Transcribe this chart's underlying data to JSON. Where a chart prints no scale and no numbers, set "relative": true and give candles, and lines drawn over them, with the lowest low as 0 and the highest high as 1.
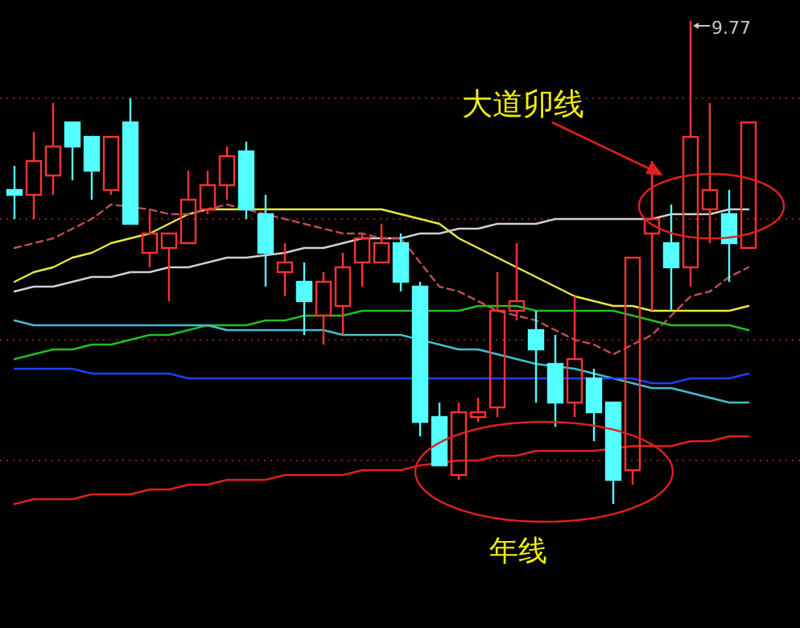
{
  "chart_data": {
    "type": "candlestick",
    "relative": true,
    "categories": [
      null,
      null,
      null,
      null,
      null,
      null,
      null,
      null,
      null,
      null,
      null,
      null,
      null,
      null,
      null,
      null,
      null,
      null,
      null,
      null,
      null,
      null,
      null,
      null,
      null,
      null,
      null,
      null,
      null,
      null,
      null,
      null,
      null,
      null,
      null,
      null,
      null,
      null,
      null
    ],
    "ohlc": [
      [
        0.65,
        0.7,
        0.59,
        0.64
      ],
      [
        0.64,
        0.77,
        0.59,
        0.71
      ],
      [
        0.68,
        0.83,
        0.64,
        0.74
      ],
      [
        0.79,
        0.79,
        0.67,
        0.74
      ],
      [
        0.76,
        0.76,
        0.63,
        0.69
      ],
      [
        0.65,
        0.76,
        0.64,
        0.76
      ],
      [
        0.79,
        0.84,
        0.58,
        0.58
      ],
      [
        0.52,
        0.61,
        0.49,
        0.56
      ],
      [
        0.53,
        0.56,
        0.42,
        0.56
      ],
      [
        0.54,
        0.69,
        0.54,
        0.63
      ],
      [
        0.61,
        0.69,
        0.6,
        0.66
      ],
      [
        0.66,
        0.74,
        0.63,
        0.72
      ],
      [
        0.73,
        0.75,
        0.59,
        0.61
      ],
      [
        0.6,
        0.64,
        0.45,
        0.52
      ],
      [
        0.48,
        0.54,
        0.43,
        0.5
      ],
      [
        0.46,
        0.5,
        0.35,
        0.42
      ],
      [
        0.39,
        0.48,
        0.33,
        0.46
      ],
      [
        0.41,
        0.52,
        0.35,
        0.49
      ],
      [
        0.5,
        0.56,
        0.45,
        0.55
      ],
      [
        0.5,
        0.58,
        0.5,
        0.54
      ],
      [
        0.54,
        0.56,
        0.44,
        0.46
      ],
      [
        0.45,
        0.46,
        0.14,
        0.17
      ],
      [
        0.18,
        0.21,
        0.08,
        0.08
      ],
      [
        0.06,
        0.21,
        0.05,
        0.19
      ],
      [
        0.18,
        0.22,
        0.17,
        0.19
      ],
      [
        0.2,
        0.48,
        0.18,
        0.4
      ],
      [
        0.4,
        0.54,
        0.38,
        0.42
      ],
      [
        0.36,
        0.4,
        0.21,
        0.32
      ],
      [
        0.29,
        0.35,
        0.16,
        0.21
      ],
      [
        0.21,
        0.43,
        0.18,
        0.3
      ],
      [
        0.26,
        0.28,
        0.13,
        0.19
      ],
      [
        0.21,
        0.21,
        0.0,
        0.05
      ],
      [
        0.07,
        0.51,
        0.04,
        0.51
      ],
      [
        0.56,
        0.71,
        0.4,
        0.59
      ],
      [
        0.54,
        0.62,
        0.4,
        0.49
      ],
      [
        0.49,
        1.0,
        0.45,
        0.76
      ],
      [
        0.61,
        0.83,
        0.54,
        0.65
      ],
      [
        0.6,
        0.65,
        0.46,
        0.54
      ],
      [
        0.53,
        0.79,
        0.53,
        0.79
      ]
    ],
    "colors": [
      "#54ffff",
      "#ff3232",
      "#ff3232",
      "#54ffff",
      "#54ffff",
      "#ff3232",
      "#54ffff",
      "#ff3232",
      "#ff3232",
      "#ff3232",
      "#ff3232",
      "#ff3232",
      "#54ffff",
      "#54ffff",
      "#ff3232",
      "#54ffff",
      "#ff3232",
      "#ff3232",
      "#ff3232",
      "#ff3232",
      "#54ffff",
      "#54ffff",
      "#54ffff",
      "#ff3232",
      "#ff3232",
      "#ff3232",
      "#ff3232",
      "#54ffff",
      "#54ffff",
      "#ff3232",
      "#54ffff",
      "#54ffff",
      "#ff3232",
      "#ff3232",
      "#54ffff",
      "#ff3232",
      "#ff3232",
      "#54ffff",
      "#ff3232"
    ],
    "series": [
      {
        "type": "line",
        "color": "#e8e840",
        "values": [
          0.46,
          0.48,
          0.49,
          0.51,
          0.52,
          0.54,
          0.55,
          0.56,
          0.58,
          0.6,
          0.61,
          0.61,
          null,
          0.61,
          0.61,
          0.61,
          0.61,
          0.61,
          0.61,
          0.61,
          0.6,
          0.59,
          0.58,
          0.55,
          0.53,
          0.51,
          0.49,
          0.47,
          0.45,
          0.43,
          0.42,
          0.41,
          0.41,
          0.4,
          0.4,
          0.4,
          0.4,
          0.4,
          0.41
        ]
      },
      {
        "type": "line",
        "color": "#d0d0d0",
        "values": [
          0.44,
          0.45,
          0.45,
          0.46,
          0.47,
          0.47,
          0.48,
          0.48,
          0.49,
          0.49,
          0.5,
          0.51,
          0.51,
          null,
          0.52,
          0.53,
          0.53,
          0.54,
          0.55,
          0.55,
          0.55,
          0.56,
          0.56,
          0.57,
          0.57,
          0.58,
          0.58,
          0.58,
          0.59,
          0.59,
          0.59,
          0.59,
          0.59,
          0.59,
          0.6,
          0.6,
          0.6,
          0.61,
          0.61
        ]
      },
      {
        "type": "line",
        "color": "#c05050",
        "line_style": "dashed",
        "values": [
          0.53,
          0.54,
          0.55,
          0.57,
          0.59,
          0.62,
          null,
          0.61,
          0.6,
          0.6,
          0.61,
          0.62,
          null,
          null,
          0.59,
          0.58,
          0.57,
          0.56,
          0.56,
          0.55,
          0.55,
          0.5,
          0.45,
          0.44,
          0.42,
          0.4,
          0.39,
          0.38,
          0.36,
          0.34,
          0.33,
          0.31,
          0.33,
          0.35,
          0.39,
          0.43,
          0.44,
          0.47,
          0.49
        ]
      },
      {
        "type": "line",
        "color": "#20c020",
        "values": [
          0.3,
          0.31,
          0.32,
          0.32,
          0.33,
          0.33,
          0.34,
          0.35,
          0.35,
          0.36,
          0.37,
          0.37,
          0.37,
          0.38,
          0.38,
          0.39,
          0.39,
          0.39,
          0.4,
          0.4,
          0.4,
          null,
          0.4,
          0.4,
          0.41,
          0.41,
          0.41,
          0.4,
          0.4,
          0.4,
          0.4,
          0.4,
          0.39,
          0.38,
          0.37,
          0.37,
          0.37,
          0.37,
          0.36
        ]
      },
      {
        "type": "line",
        "color": "#40c0d0",
        "values": [
          0.38,
          0.37,
          0.37,
          0.37,
          0.37,
          0.37,
          0.37,
          0.37,
          0.37,
          0.37,
          0.37,
          0.36,
          0.36,
          0.36,
          0.36,
          0.36,
          0.36,
          0.35,
          0.35,
          0.35,
          0.35,
          null,
          0.33,
          0.32,
          0.32,
          0.31,
          0.3,
          0.29,
          null,
          0.28,
          0.27,
          0.26,
          0.25,
          0.24,
          0.24,
          0.23,
          0.22,
          0.21,
          0.21
        ]
      },
      {
        "type": "line",
        "color": "#2040ff",
        "values": [
          0.28,
          0.28,
          0.28,
          0.28,
          0.27,
          0.27,
          0.27,
          0.27,
          0.27,
          0.26,
          0.26,
          0.26,
          0.26,
          0.26,
          0.26,
          0.26,
          0.26,
          0.26,
          0.26,
          0.26,
          0.26,
          null,
          0.26,
          0.26,
          0.26,
          0.26,
          0.26,
          0.26,
          null,
          0.26,
          null,
          0.26,
          0.26,
          0.25,
          0.25,
          0.26,
          0.26,
          0.26,
          0.27
        ]
      },
      {
        "type": "line",
        "color": "#e02020",
        "values": [
          0.0,
          0.01,
          0.01,
          0.01,
          0.02,
          0.02,
          0.02,
          0.03,
          0.03,
          0.04,
          0.04,
          0.05,
          0.05,
          0.05,
          0.06,
          0.06,
          0.06,
          0.06,
          0.07,
          0.07,
          0.07,
          0.08,
          null,
          0.09,
          0.09,
          0.1,
          0.1,
          0.11,
          0.11,
          0.11,
          0.11,
          null,
          0.12,
          0.12,
          0.12,
          0.13,
          0.13,
          0.14,
          0.14
        ]
      }
    ],
    "ref_lines": [
      {
        "axis": "y",
        "value": 0.84,
        "color": "#8b1a1a",
        "line_style": "dotted"
      },
      {
        "axis": "y",
        "value": 0.59,
        "color": "#8b1a1a",
        "line_style": "dotted"
      },
      {
        "axis": "y",
        "value": 0.34,
        "color": "#8b1a1a",
        "line_style": "dotted"
      },
      {
        "axis": "y",
        "value": 0.09,
        "color": "#8b1a1a",
        "line_style": "dotted"
      }
    ],
    "annotations": [
      "大道卯线",
      "年线",
      "9.77"
    ]
  }
}
